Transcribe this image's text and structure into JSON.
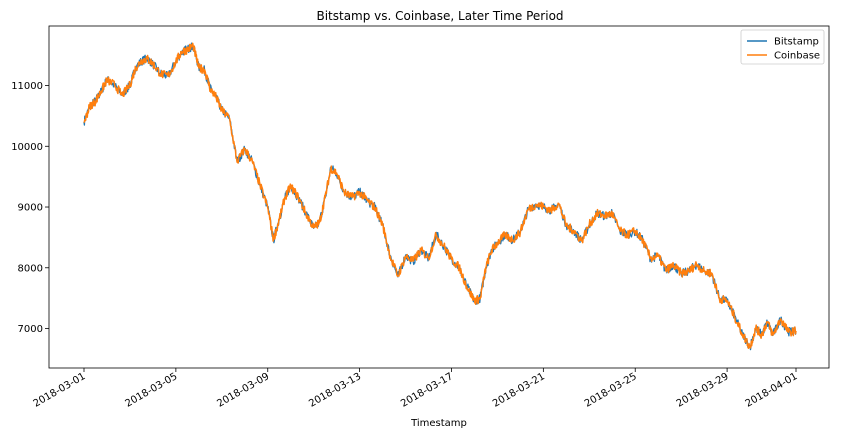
{
  "chart_data": {
    "type": "line",
    "title": "Bitstamp vs. Coinbase, Later Time Period",
    "xlabel": "Timestamp",
    "ylabel": "",
    "x_range": [
      "2018-03-01",
      "2018-04-01"
    ],
    "ylim": [
      6350,
      11980
    ],
    "x_ticks": [
      "2018-03-01",
      "2018-03-05",
      "2018-03-09",
      "2018-03-13",
      "2018-03-17",
      "2018-03-21",
      "2018-03-25",
      "2018-03-29",
      "2018-04-01"
    ],
    "y_ticks": [
      7000,
      8000,
      9000,
      10000,
      11000
    ],
    "legend": {
      "position": "top-right"
    },
    "grid": false,
    "x": [
      "2018-03-01",
      "2018-03-01T06:00",
      "2018-03-01T12:00",
      "2018-03-01T18:00",
      "2018-03-02",
      "2018-03-02T08:00",
      "2018-03-02T16:00",
      "2018-03-03",
      "2018-03-03T06:00",
      "2018-03-03T12:00",
      "2018-03-03T18:00",
      "2018-03-04",
      "2018-03-04T08:00",
      "2018-03-04T16:00",
      "2018-03-05",
      "2018-03-05T06:00",
      "2018-03-05T12:00",
      "2018-03-05T18:00",
      "2018-03-06",
      "2018-03-06T06:00",
      "2018-03-06T12:00",
      "2018-03-06T18:00",
      "2018-03-07",
      "2018-03-07T08:00",
      "2018-03-07T16:00",
      "2018-03-08",
      "2018-03-08T08:00",
      "2018-03-08T16:00",
      "2018-03-09",
      "2018-03-09T06:00",
      "2018-03-09T12:00",
      "2018-03-09T18:00",
      "2018-03-10",
      "2018-03-10T08:00",
      "2018-03-10T16:00",
      "2018-03-11",
      "2018-03-11T06:00",
      "2018-03-11T12:00",
      "2018-03-11T18:00",
      "2018-03-12",
      "2018-03-12T08:00",
      "2018-03-12T16:00",
      "2018-03-13",
      "2018-03-13T08:00",
      "2018-03-13T16:00",
      "2018-03-14",
      "2018-03-14T08:00",
      "2018-03-14T16:00",
      "2018-03-15",
      "2018-03-15T08:00",
      "2018-03-15T16:00",
      "2018-03-16",
      "2018-03-16T08:00",
      "2018-03-16T16:00",
      "2018-03-17",
      "2018-03-17T08:00",
      "2018-03-17T16:00",
      "2018-03-18",
      "2018-03-18T06:00",
      "2018-03-18T12:00",
      "2018-03-18T18:00",
      "2018-03-19",
      "2018-03-19T08:00",
      "2018-03-19T16:00",
      "2018-03-20",
      "2018-03-20T08:00",
      "2018-03-20T16:00",
      "2018-03-21",
      "2018-03-21T08:00",
      "2018-03-21T16:00",
      "2018-03-22",
      "2018-03-22T08:00",
      "2018-03-22T16:00",
      "2018-03-23",
      "2018-03-23T08:00",
      "2018-03-23T16:00",
      "2018-03-24",
      "2018-03-24T08:00",
      "2018-03-24T16:00",
      "2018-03-25",
      "2018-03-25T08:00",
      "2018-03-25T16:00",
      "2018-03-26",
      "2018-03-26T08:00",
      "2018-03-26T16:00",
      "2018-03-27",
      "2018-03-27T08:00",
      "2018-03-27T16:00",
      "2018-03-28",
      "2018-03-28T08:00",
      "2018-03-28T16:00",
      "2018-03-29",
      "2018-03-29T08:00",
      "2018-03-29T16:00",
      "2018-03-30",
      "2018-03-30T06:00",
      "2018-03-30T12:00",
      "2018-03-30T18:00",
      "2018-03-31",
      "2018-03-31T08:00",
      "2018-03-31T16:00",
      "2018-04-01"
    ],
    "series": [
      {
        "name": "Bitstamp",
        "color": "#1f77b4",
        "values": [
          10400,
          10650,
          10750,
          10900,
          11100,
          11000,
          10850,
          11000,
          11300,
          11400,
          11450,
          11350,
          11200,
          11150,
          11400,
          11550,
          11600,
          11650,
          11300,
          11250,
          10950,
          10800,
          10600,
          10450,
          9750,
          9950,
          9750,
          9350,
          9000,
          8450,
          8800,
          9150,
          9350,
          9150,
          8900,
          8650,
          8750,
          9150,
          9650,
          9550,
          9250,
          9150,
          9250,
          9100,
          9000,
          8700,
          8200,
          7850,
          8200,
          8100,
          8300,
          8150,
          8550,
          8350,
          8150,
          8000,
          7700,
          7450,
          7500,
          8000,
          8300,
          8400,
          8550,
          8450,
          8600,
          8950,
          9050,
          9000,
          8950,
          9050,
          8700,
          8600,
          8450,
          8700,
          8900,
          8850,
          8900,
          8600,
          8550,
          8600,
          8450,
          8150,
          8200,
          7950,
          8050,
          7900,
          7950,
          8050,
          7950,
          7900,
          7500,
          7450,
          7200,
          6900,
          6700,
          7000,
          6900,
          7100,
          6900,
          7150,
          6950,
          6950
        ]
      },
      {
        "name": "Coinbase",
        "color": "#ff7f0e",
        "values": [
          10390,
          10660,
          10740,
          10910,
          11090,
          11010,
          10840,
          11010,
          11290,
          11410,
          11440,
          11360,
          11190,
          11160,
          11390,
          11560,
          11590,
          11660,
          11290,
          11260,
          10940,
          10810,
          10590,
          10460,
          9740,
          9960,
          9740,
          9360,
          8990,
          8460,
          8790,
          9160,
          9340,
          9160,
          8890,
          8660,
          8740,
          9160,
          9640,
          9560,
          9240,
          9160,
          9240,
          9110,
          8990,
          8710,
          8190,
          7860,
          8190,
          8110,
          8290,
          8160,
          8540,
          8360,
          8140,
          8010,
          7690,
          7460,
          7490,
          8010,
          8290,
          8410,
          8540,
          8460,
          8590,
          8960,
          9040,
          9010,
          8940,
          9060,
          8690,
          8610,
          8440,
          8710,
          8890,
          8860,
          8890,
          8610,
          8540,
          8610,
          8440,
          8160,
          8190,
          7960,
          8040,
          7910,
          7940,
          8060,
          7940,
          7910,
          7490,
          7460,
          7190,
          6910,
          6690,
          7010,
          6890,
          7110,
          6890,
          7160,
          6940,
          6960
        ]
      }
    ]
  }
}
